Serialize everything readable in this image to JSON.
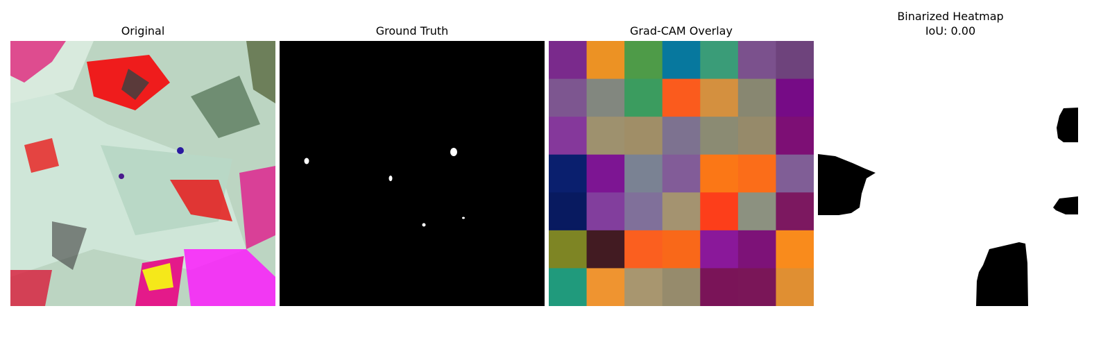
{
  "panels": [
    {
      "title": "Original"
    },
    {
      "title": "Ground Truth"
    },
    {
      "title": "Grad-CAM Overlay"
    },
    {
      "title_line1": "Binarized Heatmap",
      "title_line2": "IoU: 0.00"
    }
  ],
  "gradcam_grid_colors": [
    [
      "#7a2a8c",
      "#ec9224",
      "#4e9b48",
      "#07789e",
      "#3a9c78",
      "#7b518d",
      "#6e437c"
    ],
    [
      "#7d5690",
      "#82877f",
      "#3b9c5f",
      "#fb5b1d",
      "#d4903f",
      "#888771",
      "#760b86"
    ],
    [
      "#85389b",
      "#9e916e",
      "#a08e67",
      "#7d7290",
      "#8b8b73",
      "#968a6a",
      "#7d0f75"
    ],
    [
      "#0a1f6e",
      "#7d1593",
      "#7a8293",
      "#825c98",
      "#fb7716",
      "#fb6d19",
      "#805e96"
    ],
    [
      "#081a60",
      "#823e9d",
      "#80709a",
      "#a49370",
      "#fd3e1a",
      "#8c9180",
      "#7c1860"
    ],
    [
      "#7e8524",
      "#421b22",
      "#fb5f1f",
      "#f96819",
      "#8a189a",
      "#7d1278",
      "#f98b1c"
    ],
    [
      "#209a7c",
      "#ef9430",
      "#a8966f",
      "#968b6c",
      "#7a1458",
      "#7a1658",
      "#e08f32"
    ]
  ]
}
